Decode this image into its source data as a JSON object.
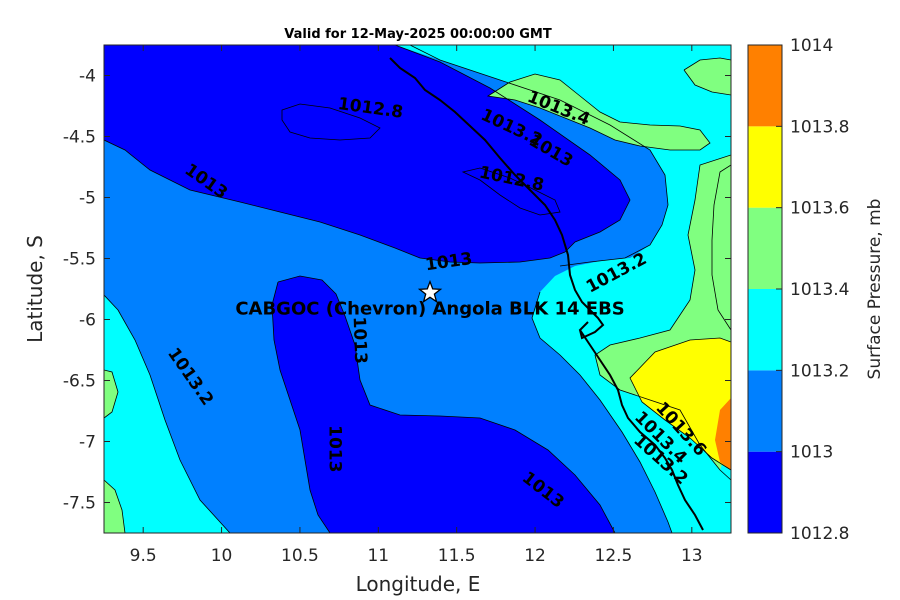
{
  "chart_data": {
    "type": "contour",
    "title": "Valid for 12-May-2025 00:00:00 GMT",
    "xlabel": "Longitude, E",
    "ylabel": "Latitude, S",
    "xlim": [
      9.25,
      13.25
    ],
    "ylim": [
      -7.75,
      -3.75
    ],
    "x_ticks": [
      9.5,
      10,
      10.5,
      11,
      11.5,
      12,
      12.5,
      13
    ],
    "x_tick_labels": [
      "9.5",
      "10",
      "10.5",
      "11",
      "11.5",
      "12",
      "12.5",
      "13"
    ],
    "y_ticks": [
      -4,
      -4.5,
      -5,
      -5.5,
      -6,
      -6.5,
      -7,
      -7.5
    ],
    "y_tick_labels": [
      "-4",
      "-4.5",
      "-5",
      "-5.5",
      "-6",
      "-6.5",
      "-7",
      "-7.5"
    ],
    "colorbar": {
      "title": "Surface Pressure, mb",
      "levels": [
        1012.8,
        1013,
        1013.2,
        1013.4,
        1013.6,
        1013.8,
        1014
      ],
      "tick_labels": [
        "1012.8",
        "1013",
        "1013.2",
        "1013.4",
        "1013.6",
        "1013.8",
        "1014"
      ],
      "colors": [
        "#0000ff",
        "#0080ff",
        "#00ffff",
        "#80ff80",
        "#ffff00",
        "#ff8000",
        "#ff0000"
      ]
    },
    "contour_labels": [
      {
        "text": "1012.8",
        "lon": 10.95,
        "lat": -4.27,
        "angle": 8
      },
      {
        "text": "1012.8",
        "lon": 11.85,
        "lat": -4.85,
        "angle": 12
      },
      {
        "text": "1013",
        "lon": 9.9,
        "lat": -4.87,
        "angle": 35
      },
      {
        "text": "1013",
        "lon": 11.45,
        "lat": -5.53,
        "angle": -8
      },
      {
        "text": "1013",
        "lon": 10.88,
        "lat": -6.17,
        "angle": 88
      },
      {
        "text": "1013",
        "lon": 10.72,
        "lat": -7.06,
        "angle": 90
      },
      {
        "text": "1013",
        "lon": 12.05,
        "lat": -7.4,
        "angle": 38
      },
      {
        "text": "1013",
        "lon": 12.1,
        "lat": -4.62,
        "angle": 30
      },
      {
        "text": "1013.2",
        "lon": 12.52,
        "lat": -5.62,
        "angle": -28
      },
      {
        "text": "1013.2",
        "lon": 9.8,
        "lat": -6.47,
        "angle": 55
      },
      {
        "text": "1013.2",
        "lon": 11.85,
        "lat": -4.43,
        "angle": 25
      },
      {
        "text": "1013.2",
        "lon": 12.8,
        "lat": -7.15,
        "angle": 42
      },
      {
        "text": "1013.4",
        "lon": 12.15,
        "lat": -4.27,
        "angle": 22
      },
      {
        "text": "1013.4",
        "lon": 12.8,
        "lat": -6.97,
        "angle": 45
      },
      {
        "text": "1013.6",
        "lon": 12.93,
        "lat": -6.9,
        "angle": 48
      }
    ],
    "site": {
      "label": "CABGOC (Chevron)  Angola BLK 14  EBS",
      "lon": 11.33,
      "lat": -5.78
    }
  }
}
